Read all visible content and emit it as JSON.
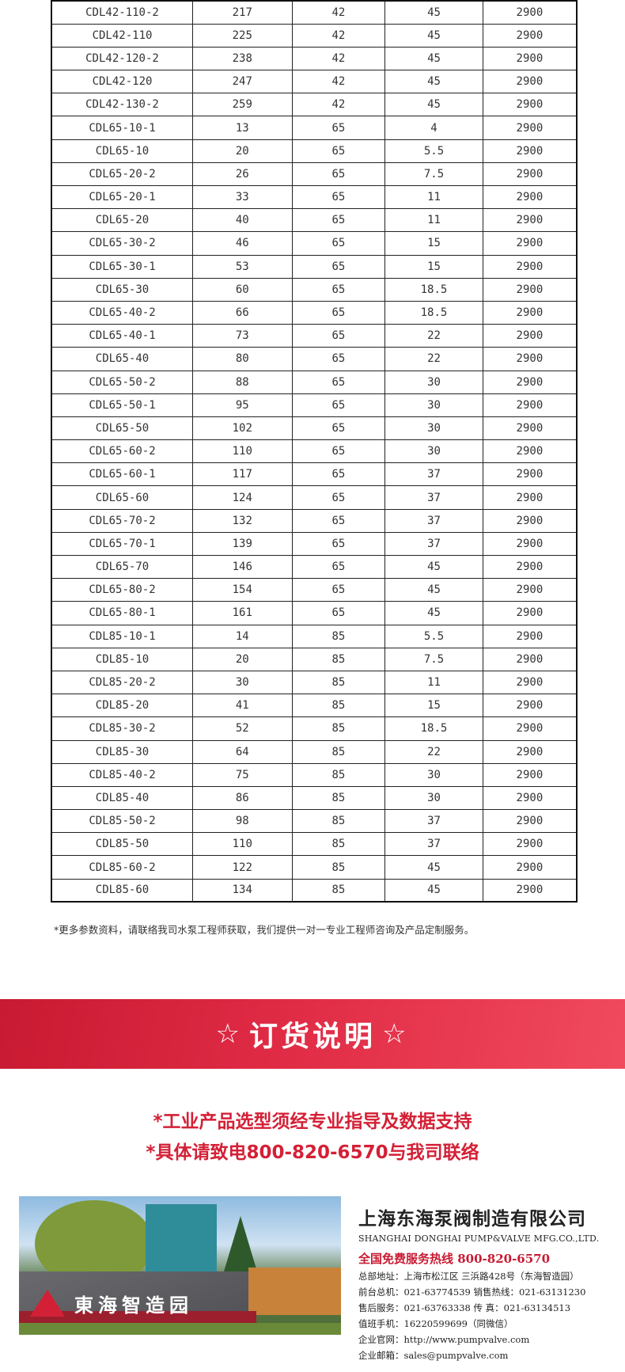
{
  "table": {
    "rows": [
      [
        "CDL42-110-2",
        "217",
        "42",
        "45",
        "2900"
      ],
      [
        "CDL42-110",
        "225",
        "42",
        "45",
        "2900"
      ],
      [
        "CDL42-120-2",
        "238",
        "42",
        "45",
        "2900"
      ],
      [
        "CDL42-120",
        "247",
        "42",
        "45",
        "2900"
      ],
      [
        "CDL42-130-2",
        "259",
        "42",
        "45",
        "2900"
      ],
      [
        "CDL65-10-1",
        "13",
        "65",
        "4",
        "2900"
      ],
      [
        "CDL65-10",
        "20",
        "65",
        "5.5",
        "2900"
      ],
      [
        "CDL65-20-2",
        "26",
        "65",
        "7.5",
        "2900"
      ],
      [
        "CDL65-20-1",
        "33",
        "65",
        "11",
        "2900"
      ],
      [
        "CDL65-20",
        "40",
        "65",
        "11",
        "2900"
      ],
      [
        "CDL65-30-2",
        "46",
        "65",
        "15",
        "2900"
      ],
      [
        "CDL65-30-1",
        "53",
        "65",
        "15",
        "2900"
      ],
      [
        "CDL65-30",
        "60",
        "65",
        "18.5",
        "2900"
      ],
      [
        "CDL65-40-2",
        "66",
        "65",
        "18.5",
        "2900"
      ],
      [
        "CDL65-40-1",
        "73",
        "65",
        "22",
        "2900"
      ],
      [
        "CDL65-40",
        "80",
        "65",
        "22",
        "2900"
      ],
      [
        "CDL65-50-2",
        "88",
        "65",
        "30",
        "2900"
      ],
      [
        "CDL65-50-1",
        "95",
        "65",
        "30",
        "2900"
      ],
      [
        "CDL65-50",
        "102",
        "65",
        "30",
        "2900"
      ],
      [
        "CDL65-60-2",
        "110",
        "65",
        "30",
        "2900"
      ],
      [
        "CDL65-60-1",
        "117",
        "65",
        "37",
        "2900"
      ],
      [
        "CDL65-60",
        "124",
        "65",
        "37",
        "2900"
      ],
      [
        "CDL65-70-2",
        "132",
        "65",
        "37",
        "2900"
      ],
      [
        "CDL65-70-1",
        "139",
        "65",
        "37",
        "2900"
      ],
      [
        "CDL65-70",
        "146",
        "65",
        "45",
        "2900"
      ],
      [
        "CDL65-80-2",
        "154",
        "65",
        "45",
        "2900"
      ],
      [
        "CDL65-80-1",
        "161",
        "65",
        "45",
        "2900"
      ],
      [
        "CDL85-10-1",
        "14",
        "85",
        "5.5",
        "2900"
      ],
      [
        "CDL85-10",
        "20",
        "85",
        "7.5",
        "2900"
      ],
      [
        "CDL85-20-2",
        "30",
        "85",
        "11",
        "2900"
      ],
      [
        "CDL85-20",
        "41",
        "85",
        "15",
        "2900"
      ],
      [
        "CDL85-30-2",
        "52",
        "85",
        "18.5",
        "2900"
      ],
      [
        "CDL85-30",
        "64",
        "85",
        "22",
        "2900"
      ],
      [
        "CDL85-40-2",
        "75",
        "85",
        "30",
        "2900"
      ],
      [
        "CDL85-40",
        "86",
        "85",
        "30",
        "2900"
      ],
      [
        "CDL85-50-2",
        "98",
        "85",
        "37",
        "2900"
      ],
      [
        "CDL85-50",
        "110",
        "85",
        "37",
        "2900"
      ],
      [
        "CDL85-60-2",
        "122",
        "85",
        "45",
        "2900"
      ],
      [
        "CDL85-60",
        "134",
        "85",
        "45",
        "2900"
      ]
    ]
  },
  "note": "*更多参数资料，请联络我司水泵工程师获取，我们提供一对一专业工程师咨询及产品定制服务。",
  "order": {
    "star": "☆",
    "title": "订货说明",
    "line1": "*工业产品选型须经专业指导及数据支持",
    "line2": "*具体请致电800-820-6570与我司联络"
  },
  "photo": {
    "sign": "東海智造园"
  },
  "company": {
    "name_cn": "上海东海泵阀制造有限公司",
    "name_en": "SHANGHAI DONGHAI PUMP&VALVE MFG.CO.,LTD.",
    "hotline": "全国免费服务热线  800-820-6570",
    "address": "总部地址：上海市松江区 三浜路428号（东海智造园）",
    "front": "前台总机：021-63774539   销售热线：021-63131230",
    "after": "售后服务：021-63763338   传      真：021-63134513",
    "mobile": "值班手机：16220599699（同微信）",
    "web": "企业官网：http://www.pumpvalve.com",
    "email": "企业邮箱：sales@pumpvalve.com"
  },
  "colors": {
    "accent": "#d42036"
  }
}
